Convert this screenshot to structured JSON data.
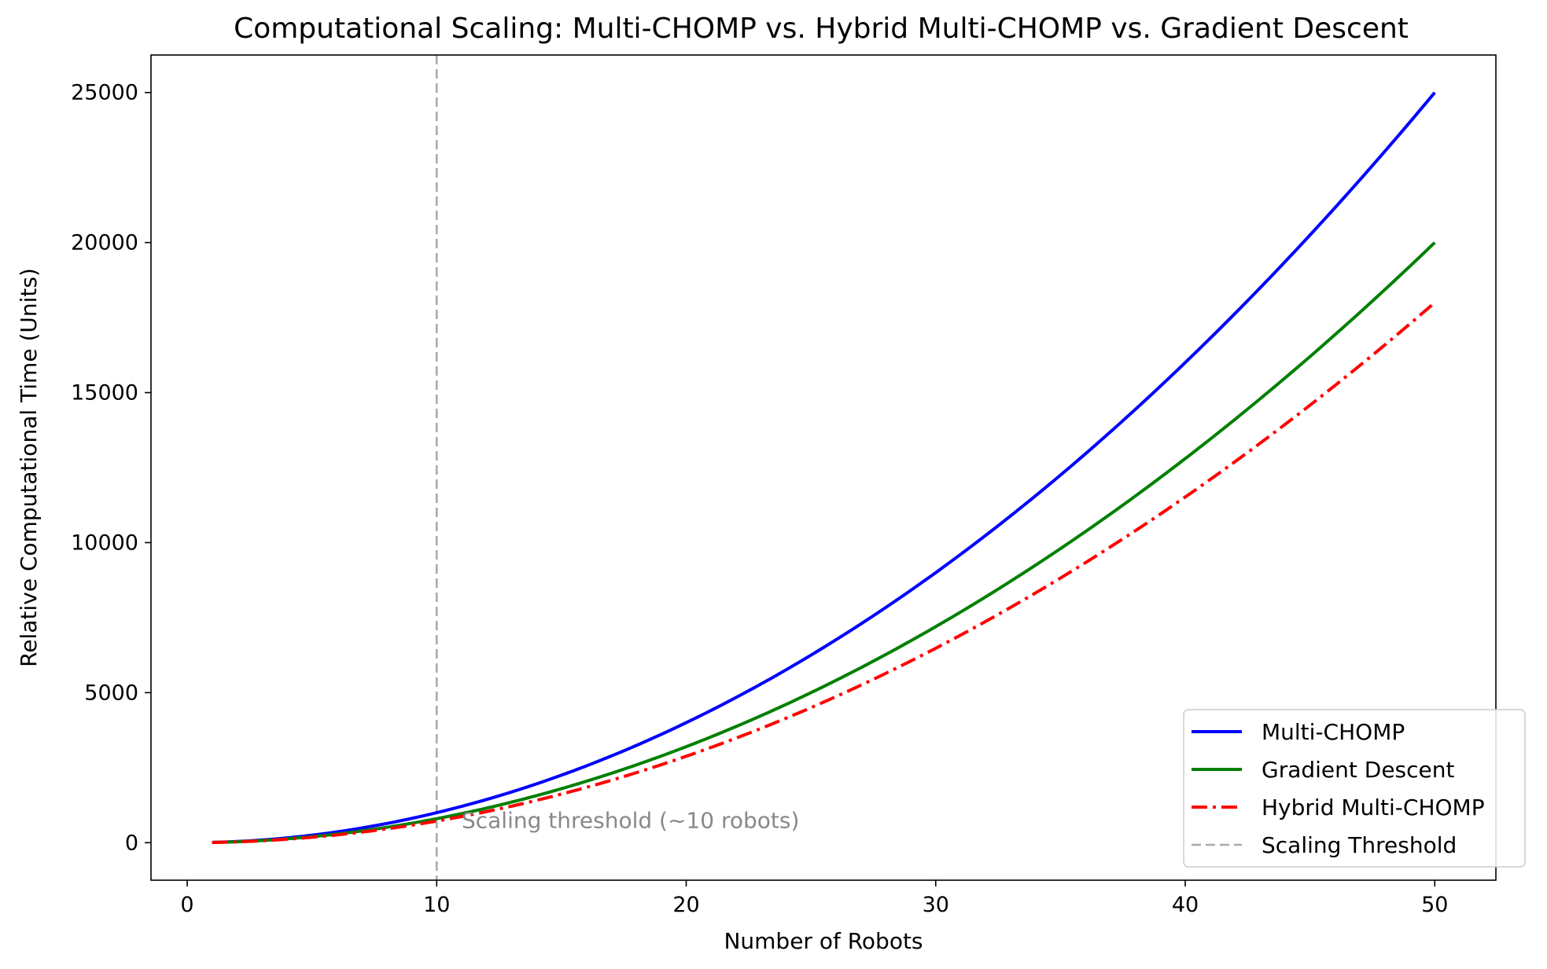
{
  "chart_data": {
    "type": "line",
    "title": "Computational Scaling: Multi-CHOMP vs. Hybrid Multi-CHOMP vs. Gradient Descent",
    "xlabel": "Number of Robots",
    "ylabel": "Relative Computational Time (Units)",
    "xlim": [
      -1.45,
      52.45
    ],
    "ylim": [
      -1250,
      26250
    ],
    "xticks": [
      0,
      10,
      20,
      30,
      40,
      50
    ],
    "yticks": [
      0,
      5000,
      10000,
      15000,
      20000,
      25000
    ],
    "x_range": [
      1,
      50
    ],
    "series": [
      {
        "name": "Multi-CHOMP",
        "color": "#0000ff",
        "style": "solid",
        "formula": "power",
        "coef": 10,
        "exponent": 2
      },
      {
        "name": "Gradient Descent",
        "color": "#008000",
        "style": "solid",
        "formula": "power",
        "coef": 8,
        "exponent": 2
      },
      {
        "name": "Hybrid Multi-CHOMP",
        "color": "#ff0000",
        "style": "dashdot",
        "formula": "power",
        "coef": 7.2,
        "exponent": 2
      }
    ],
    "threshold": {
      "name": "Scaling Threshold",
      "x": 10,
      "color": "#aaaaaa",
      "style": "dashed"
    },
    "annotation": {
      "text": "Scaling threshold (~10 robots)",
      "x": 11,
      "y": 800
    },
    "legend_position": "lower-right",
    "grid": false
  }
}
